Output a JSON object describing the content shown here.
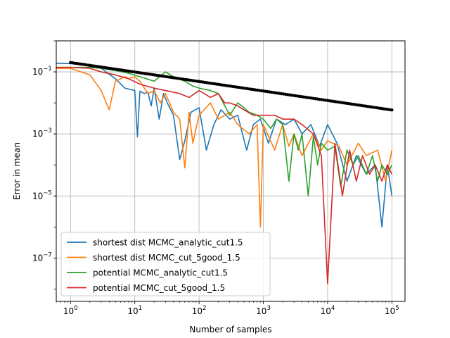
{
  "chart_data": {
    "type": "line",
    "title": "",
    "xlabel": "Number of samples",
    "ylabel": "Error in mean",
    "xscale": "log",
    "yscale": "log",
    "xlim": [
      0.6,
      160000
    ],
    "ylim": [
      4e-09,
      1.0
    ],
    "grid": true,
    "legend_position": "lower-left",
    "x_ticks": [
      {
        "value": 1,
        "base": "10",
        "exp": "0"
      },
      {
        "value": 10,
        "base": "10",
        "exp": "1"
      },
      {
        "value": 100,
        "base": "10",
        "exp": "2"
      },
      {
        "value": 1000,
        "base": "10",
        "exp": "3"
      },
      {
        "value": 10000,
        "base": "10",
        "exp": "4"
      },
      {
        "value": 100000,
        "base": "10",
        "exp": "5"
      }
    ],
    "y_ticks": [
      {
        "value": 1e-07,
        "base": "10",
        "exp": "−7"
      },
      {
        "value": 1e-05,
        "base": "10",
        "exp": "−5"
      },
      {
        "value": 0.001,
        "base": "10",
        "exp": "−3"
      },
      {
        "value": 0.1,
        "base": "10",
        "exp": "−1"
      }
    ],
    "reference": {
      "color": "#000000",
      "x_start": 1,
      "x_end": 100000,
      "y_start": 0.2,
      "y_end": 0.0059
    },
    "series": [
      {
        "name": "shortest dist MCMC_analytic_cut1.5",
        "color": "#1f77b4",
        "x": [
          0.6,
          1,
          2,
          3,
          5,
          7,
          10,
          11,
          12,
          14,
          16,
          18,
          20,
          24,
          28,
          32,
          40,
          50,
          60,
          75,
          100,
          130,
          170,
          220,
          300,
          400,
          550,
          700,
          900,
          1200,
          1600,
          2200,
          3000,
          4000,
          5500,
          7500,
          10000,
          14000,
          20000,
          28000,
          40000,
          55000,
          70000,
          85000,
          100000
        ],
        "y": [
          0.19,
          0.185,
          0.16,
          0.13,
          0.06,
          0.03,
          0.025,
          0.0008,
          0.024,
          0.02,
          0.022,
          0.008,
          0.03,
          0.003,
          0.02,
          0.01,
          0.004,
          0.00015,
          0.0006,
          0.005,
          0.007,
          0.0003,
          0.002,
          0.006,
          0.003,
          0.004,
          0.0003,
          0.002,
          0.003,
          0.0005,
          0.003,
          0.002,
          0.003,
          0.001,
          0.002,
          0.0004,
          0.002,
          0.0005,
          3e-05,
          0.0002,
          5e-05,
          0.0001,
          1e-06,
          0.0001,
          1e-05
        ]
      },
      {
        "name": "shortest dist MCMC_cut_5good_1.5",
        "color": "#ff7f0e",
        "x": [
          0.6,
          1,
          2,
          3,
          4,
          5,
          6,
          7,
          8,
          10,
          12,
          16,
          20,
          25,
          30,
          40,
          50,
          60,
          70,
          80,
          100,
          150,
          200,
          300,
          400,
          600,
          800,
          900,
          1000,
          1500,
          2000,
          2500,
          3000,
          4000,
          6000,
          8000,
          10000,
          15000,
          20000,
          30000,
          40000,
          60000,
          80000,
          100000
        ],
        "y": [
          0.13,
          0.13,
          0.08,
          0.025,
          0.006,
          0.05,
          0.06,
          0.07,
          0.06,
          0.07,
          0.05,
          0.02,
          0.025,
          0.01,
          0.02,
          0.005,
          0.003,
          8e-05,
          0.005,
          0.0005,
          0.004,
          0.01,
          0.003,
          0.005,
          0.002,
          0.001,
          0.002,
          1e-06,
          0.002,
          0.0003,
          0.002,
          0.0004,
          0.001,
          0.0002,
          0.001,
          0.0003,
          0.0006,
          0.0004,
          0.0001,
          0.0005,
          0.0002,
          0.0003,
          3e-05,
          0.0003
        ]
      },
      {
        "name": "potential MCMC_analytic_cut1.5",
        "color": "#2ca02c",
        "x": [
          0.6,
          1,
          2,
          3,
          5,
          8,
          12,
          20,
          30,
          40,
          60,
          80,
          100,
          150,
          200,
          300,
          400,
          500,
          600,
          800,
          1000,
          1300,
          1600,
          2000,
          2500,
          3000,
          3500,
          4000,
          5000,
          6000,
          7000,
          8000,
          10000,
          13000,
          16000,
          20000,
          25000,
          30000,
          40000,
          50000,
          60000,
          70000,
          85000,
          100000
        ],
        "y": [
          0.14,
          0.14,
          0.14,
          0.13,
          0.11,
          0.09,
          0.07,
          0.05,
          0.1,
          0.07,
          0.05,
          0.035,
          0.03,
          0.025,
          0.02,
          0.004,
          0.01,
          0.007,
          0.005,
          0.004,
          0.003,
          0.0015,
          0.003,
          0.002,
          3e-05,
          0.001,
          0.0003,
          0.001,
          1e-05,
          0.0008,
          0.0001,
          0.0005,
          0.0003,
          0.0004,
          2e-05,
          0.0003,
          0.0001,
          0.0002,
          5e-05,
          0.0002,
          3e-05,
          0.0001,
          5e-05,
          0.0001
        ]
      },
      {
        "name": "potential MCMC_cut_5good_1.5",
        "color": "#d62728",
        "x": [
          0.6,
          1,
          2,
          3,
          5,
          8,
          12,
          20,
          30,
          50,
          70,
          100,
          120,
          150,
          200,
          250,
          300,
          400,
          500,
          700,
          1000,
          1500,
          2000,
          3000,
          4000,
          6000,
          8000,
          10000,
          13000,
          17000,
          22000,
          28000,
          35000,
          45000,
          55000,
          70000,
          85000,
          100000
        ],
        "y": [
          0.14,
          0.14,
          0.13,
          0.1,
          0.08,
          0.06,
          0.04,
          0.03,
          0.025,
          0.02,
          0.015,
          0.025,
          0.02,
          0.015,
          0.02,
          0.01,
          0.01,
          0.008,
          0.006,
          0.004,
          0.004,
          0.004,
          0.003,
          0.003,
          0.002,
          0.001,
          0.0002,
          1.5e-08,
          0.0005,
          1e-05,
          0.0003,
          3e-05,
          0.0002,
          5e-05,
          0.0001,
          3e-05,
          0.0001,
          5e-05
        ]
      }
    ]
  }
}
